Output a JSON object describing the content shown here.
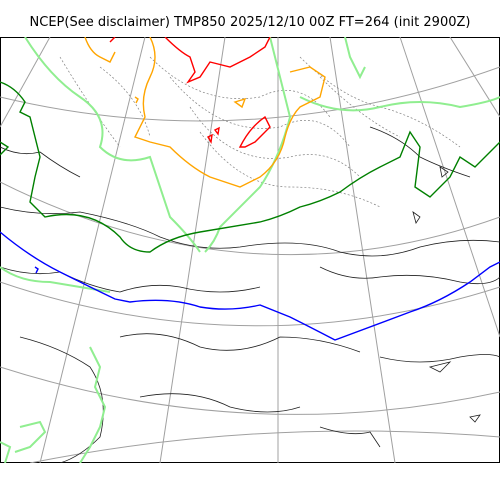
{
  "header": {
    "title": "NCEP(See disclaimer) TMP850 2025/12/10 00Z FT=264 (init 2900Z)"
  },
  "map": {
    "field": "TMP850",
    "colors": {
      "coastline": "#000000",
      "graticule": "#a0a0a0",
      "isotherm_minus_dark": "#0000ff",
      "isotherm_minus_light": "#90ee90",
      "isotherm_mid": "#008000",
      "isotherm_warm": "#ffa500",
      "isotherm_hot": "#ff0000",
      "isotherm_minor": "#808080"
    }
  }
}
